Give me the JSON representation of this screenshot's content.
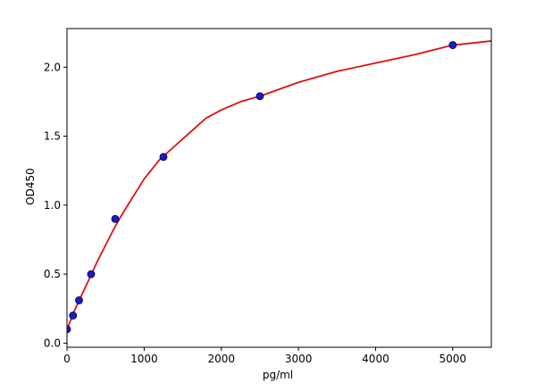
{
  "chart_data": {
    "type": "scatter",
    "title": "",
    "xlabel": "pg/ml",
    "ylabel": "OD450",
    "xlim": [
      0,
      5500
    ],
    "ylim": [
      -0.03,
      2.28
    ],
    "x_ticks": [
      0,
      1000,
      2000,
      3000,
      4000,
      5000
    ],
    "y_ticks": [
      0.0,
      0.5,
      1.0,
      1.5,
      2.0
    ],
    "x_tick_labels": [
      "0",
      "1000",
      "2000",
      "3000",
      "4000",
      "5000"
    ],
    "y_tick_labels": [
      "0.0",
      "0.5",
      "1.0",
      "1.5",
      "2.0"
    ],
    "grid": false,
    "series": [
      {
        "kind": "points",
        "color": "#1a1acc",
        "x": [
          0,
          78,
          156,
          312,
          625,
          1250,
          2500,
          5000
        ],
        "y": [
          0.1,
          0.2,
          0.31,
          0.5,
          0.9,
          1.35,
          1.79,
          2.16
        ]
      },
      {
        "kind": "fit-curve",
        "color": "#dd1111",
        "x": [
          0,
          50,
          100,
          150,
          200,
          300,
          400,
          500,
          600,
          700,
          800,
          1000,
          1200,
          1400,
          1600,
          1800,
          2000,
          2250,
          2500,
          2750,
          3000,
          3500,
          4000,
          4500,
          5000,
          5500
        ],
        "y": [
          0.1,
          0.17,
          0.24,
          0.3,
          0.36,
          0.48,
          0.6,
          0.71,
          0.82,
          0.92,
          1.01,
          1.19,
          1.33,
          1.43,
          1.53,
          1.63,
          1.69,
          1.75,
          1.79,
          1.84,
          1.89,
          1.97,
          2.03,
          2.09,
          2.16,
          2.19
        ]
      }
    ]
  }
}
